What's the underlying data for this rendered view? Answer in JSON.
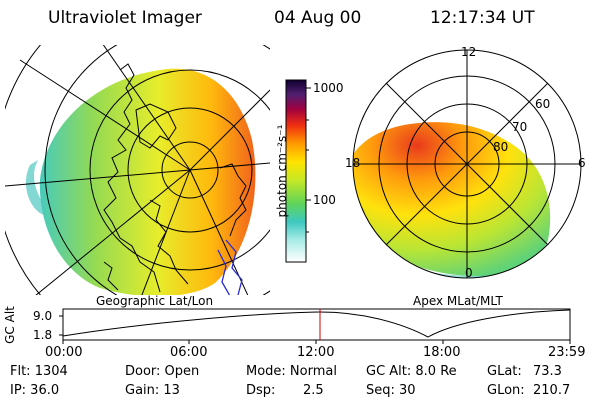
{
  "header": {
    "instrument": "Ultraviolet Imager",
    "date": "04 Aug 00",
    "time": "12:17:34 UT"
  },
  "colorbar": {
    "unit_label": "photon cm⁻²s⁻¹",
    "ticks": [
      "1000",
      "100"
    ],
    "scale": "log"
  },
  "left_map": {
    "caption": "Geographic Lat/Lon"
  },
  "right_map": {
    "caption": "Apex MLat/MLT",
    "mlt_labels": {
      "top": "12",
      "left": "18",
      "right": "6",
      "bottom": "0"
    },
    "lat_labels": [
      "60",
      "70",
      "80"
    ]
  },
  "altitude_plot": {
    "ylabel": "GC Alt",
    "yticks": [
      "9.0",
      "1.8"
    ],
    "xticks": [
      "00:00",
      "06:00",
      "12:00",
      "18:00",
      "23:59"
    ],
    "current_time_marker_color": "#d00000"
  },
  "info": {
    "flt": "Flt: 1304",
    "door": "Door: Open",
    "mode": "Mode: Normal",
    "gc_alt": "GC Alt: 8.0 Re",
    "glat_label": "GLat:",
    "glat_value": "73.3",
    "ip": "IP: 36.0",
    "gain": "Gain: 13",
    "dsp_label": "Dsp:",
    "dsp_value": "2.5",
    "seq": "Seq: 30",
    "glon_label": "GLon:",
    "glon_value": "210.7"
  }
}
